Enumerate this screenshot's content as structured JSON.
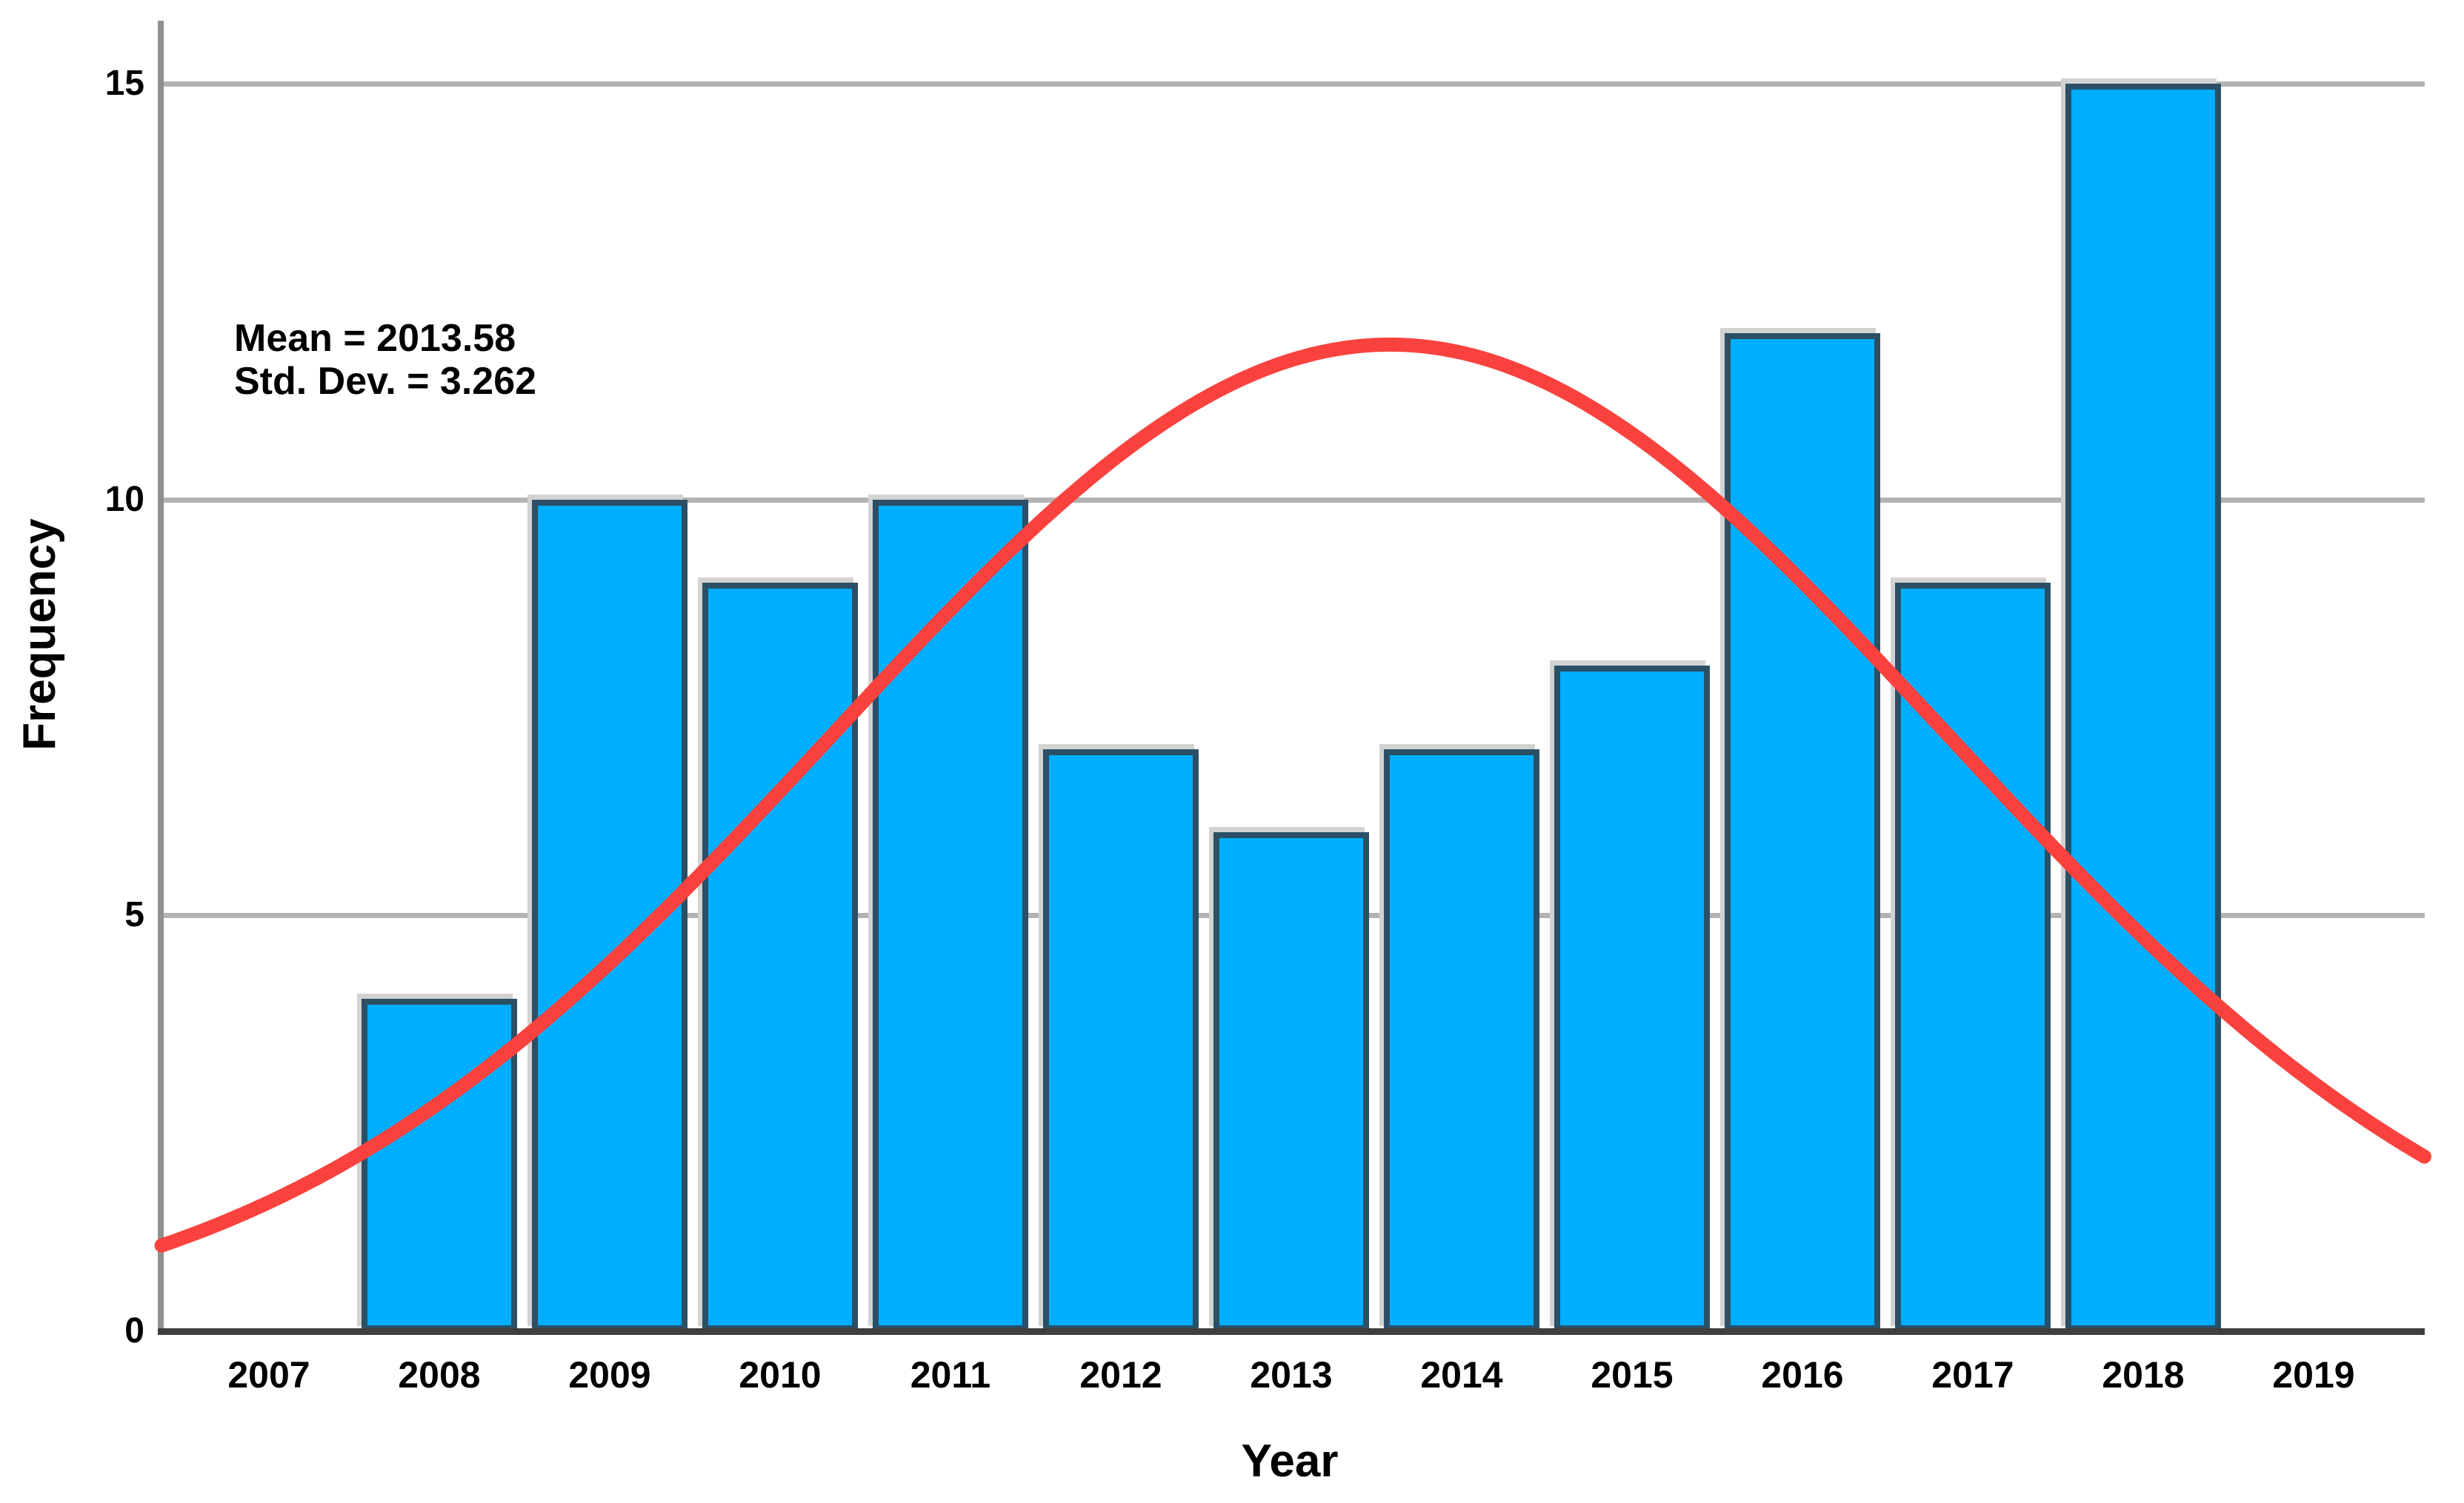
{
  "chart_data": {
    "type": "bar",
    "title": "",
    "xlabel": "Year",
    "ylabel": "Frequency",
    "categories": [
      "2007",
      "2008",
      "2009",
      "2010",
      "2011",
      "2012",
      "2013",
      "2014",
      "2015",
      "2016",
      "2017",
      "2018",
      "2019"
    ],
    "values": [
      0,
      4,
      10,
      9,
      10,
      7,
      6,
      7,
      8,
      12,
      9,
      15,
      0
    ],
    "y_ticks": [
      0,
      5,
      10,
      15
    ],
    "ylim": [
      0,
      15.75
    ],
    "x_domain": [
      2006.37,
      2019.65
    ],
    "grid": "horizontal",
    "legend_position": "none",
    "annotation": {
      "line1": "Mean = 2013.58",
      "line2": "Std. Dev. = 3.262"
    },
    "normal_curve": {
      "mean": 2013.58,
      "std_dev": 3.262,
      "n_total": 97,
      "bin_width": 1
    },
    "colors": {
      "bar_fill": "#00AEFF",
      "bar_border": "#2B5066",
      "bar_shadow": "#D2D2D2",
      "curve": "#F9423E",
      "gridline": "#B3B3B3",
      "x_axis": "#3F3F3F",
      "y_axis": "#909090",
      "text": "#000000",
      "background": "#FFFFFF"
    }
  }
}
